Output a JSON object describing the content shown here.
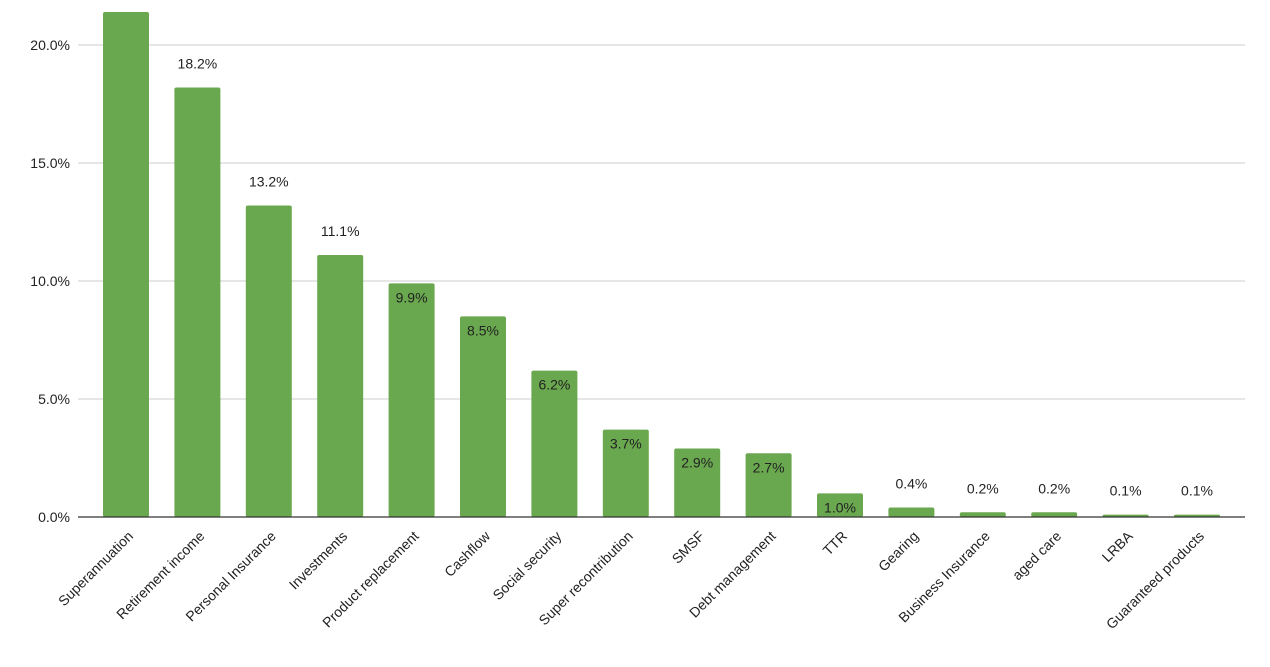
{
  "chart_data": {
    "type": "bar",
    "title": "",
    "xlabel": "",
    "ylabel": "",
    "categories": [
      "Superannuation",
      "Retirement income",
      "Personal Insurance",
      "Investments",
      "Product replacement",
      "Cashflow",
      "Social security",
      "Super recontribution",
      "SMSF",
      "Debt management",
      "TTR",
      "Gearing",
      "Business Insurance",
      "aged care",
      "LRBA",
      "Guaranteed products"
    ],
    "values": [
      21.4,
      18.2,
      13.2,
      11.1,
      9.9,
      8.5,
      6.2,
      3.7,
      2.9,
      2.7,
      1.0,
      0.4,
      0.2,
      0.2,
      0.1,
      0.1
    ],
    "data_labels": [
      "",
      "18.2%",
      "13.2%",
      "11.1%",
      "9.9%",
      "8.5%",
      "6.2%",
      "3.7%",
      "2.9%",
      "2.7%",
      "1.0%",
      "0.4%",
      "0.2%",
      "0.2%",
      "0.1%",
      "0.1%"
    ],
    "yticks": [
      "0.0%",
      "5.0%",
      "10.0%",
      "15.0%",
      "20.0%"
    ],
    "ytick_values": [
      0,
      5,
      10,
      15,
      20
    ],
    "ylim": [
      0,
      21.9
    ],
    "grid": true,
    "legend": "none",
    "bar_color": "#6aa84f"
  }
}
